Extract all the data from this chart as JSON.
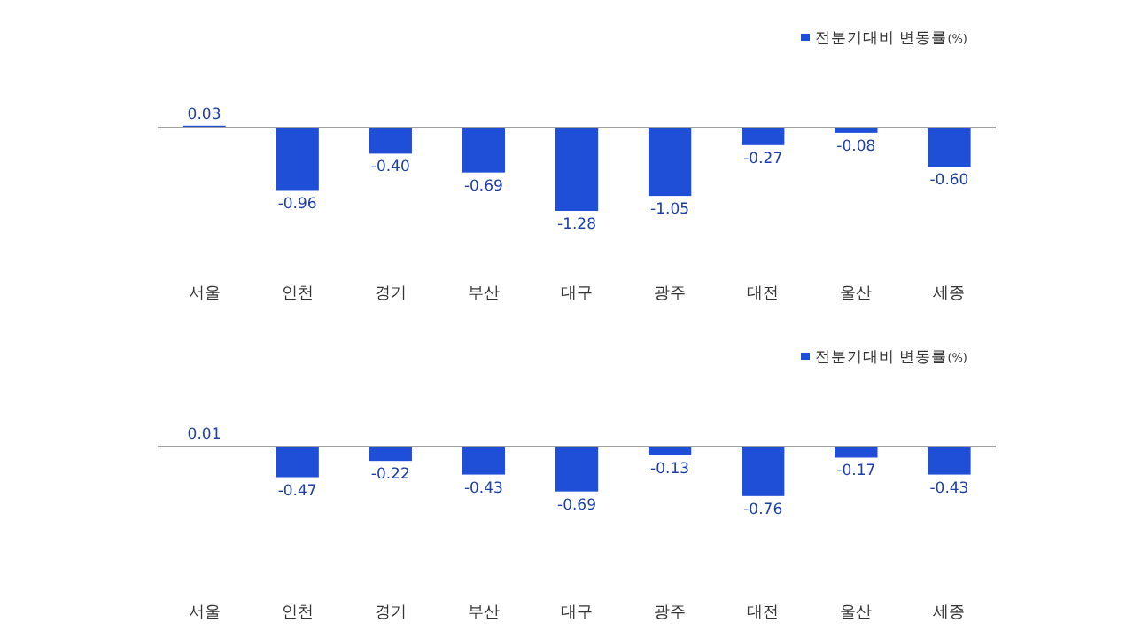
{
  "chart_data": [
    {
      "type": "bar",
      "categories": [
        "서울",
        "인천",
        "경기",
        "부산",
        "대구",
        "광주",
        "대전",
        "울산",
        "세종"
      ],
      "series": [
        {
          "name": "전분기대비 변동률(%)",
          "color": "#1f4fd6",
          "values": [
            0.03,
            -0.96,
            -0.4,
            -0.69,
            -1.28,
            -1.05,
            -0.27,
            -0.08,
            -0.6
          ],
          "value_labels": [
            "0.03",
            "-0.96",
            "-0.40",
            "-0.69",
            "-1.28",
            "-1.05",
            "-0.27",
            "-0.08",
            "-0.60"
          ]
        }
      ],
      "legend": "top right",
      "grid": false
    },
    {
      "type": "bar",
      "categories": [
        "서울",
        "인천",
        "경기",
        "부산",
        "대구",
        "광주",
        "대전",
        "울산",
        "세종"
      ],
      "series": [
        {
          "name": "전분기대비 변동률(%)",
          "color": "#1f4fd6",
          "values": [
            0.01,
            -0.47,
            -0.22,
            -0.43,
            -0.69,
            -0.13,
            -0.76,
            -0.17,
            -0.43
          ],
          "value_labels": [
            "0.01",
            "-0.47",
            "-0.22",
            "-0.43",
            "-0.69",
            "-0.13",
            "-0.76",
            "-0.17",
            "-0.43"
          ]
        }
      ],
      "legend": "top right",
      "grid": false
    }
  ]
}
